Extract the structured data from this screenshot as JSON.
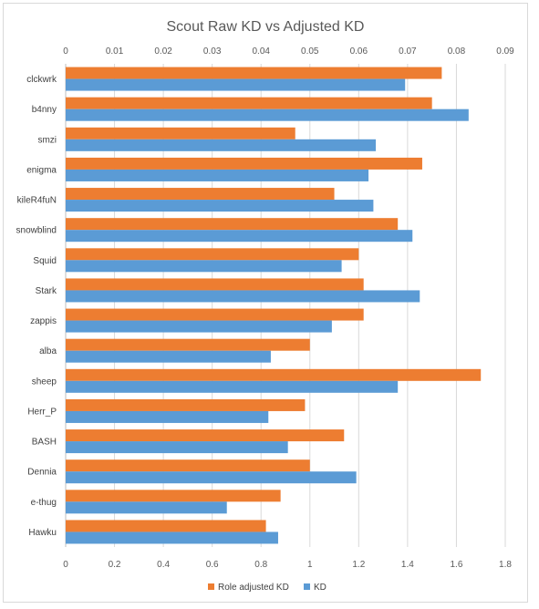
{
  "chart_data": {
    "type": "bar",
    "orientation": "horizontal",
    "title": "Scout Raw KD vs Adjusted KD",
    "categories": [
      "clckwrk",
      "b4nny",
      "smzi",
      "enigma",
      "kileR4fuN",
      "snowblind",
      "Squid",
      "Stark",
      "zappis",
      "alba",
      "sheep",
      "Herr_P",
      "BASH",
      "Dennia",
      "e-thug",
      "Hawku"
    ],
    "series": [
      {
        "name": "Role adjusted KD",
        "color": "#ed7d31",
        "axis": "top",
        "values": [
          0.077,
          0.075,
          0.047,
          0.073,
          0.055,
          0.068,
          0.06,
          0.061,
          0.061,
          0.05,
          0.085,
          0.049,
          0.057,
          0.05,
          0.044,
          0.041
        ]
      },
      {
        "name": "KD",
        "color": "#5b9bd5",
        "axis": "bottom",
        "values": [
          1.39,
          1.65,
          1.27,
          1.24,
          1.26,
          1.42,
          1.13,
          1.45,
          1.09,
          0.84,
          1.36,
          0.83,
          0.91,
          1.19,
          0.66,
          0.87
        ]
      }
    ],
    "x_top_axis": {
      "ticks": [
        "0",
        "0.01",
        "0.02",
        "0.03",
        "0.04",
        "0.05",
        "0.06",
        "0.07",
        "0.08",
        "0.09"
      ],
      "range": [
        0,
        0.09
      ]
    },
    "x_bottom_axis": {
      "ticks": [
        "0",
        "0.2",
        "0.4",
        "0.6",
        "0.8",
        "1",
        "1.2",
        "1.4",
        "1.6",
        "1.8"
      ],
      "range": [
        0,
        1.8
      ]
    },
    "legend": {
      "position": "bottom",
      "entries": [
        "Role adjusted KD",
        "KD"
      ]
    },
    "grid": true
  }
}
